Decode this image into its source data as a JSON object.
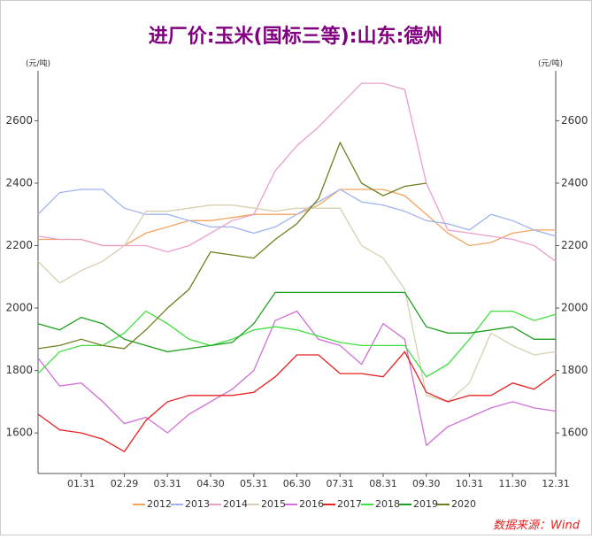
{
  "chart_data": {
    "type": "line",
    "title": "进厂价:玉米(国标三等):山东:德州",
    "y_unit": "(元/吨)",
    "y2_unit": "(元/吨)",
    "source": "数据来源：Wind",
    "categories": [
      null,
      null,
      "01.31",
      null,
      "02.29",
      null,
      "03.31",
      null,
      "04.30",
      null,
      "05.31",
      null,
      "06.30",
      null,
      "07.31",
      null,
      "08.31",
      null,
      "09.30",
      null,
      "10.31",
      null,
      "11.30",
      null,
      "12.31"
    ],
    "ylim": [
      1470,
      2760
    ],
    "yticks": [
      1600,
      1800,
      2000,
      2200,
      2400,
      2600
    ],
    "y2lim": [
      1470,
      2760
    ],
    "y2ticks": [
      1600,
      1800,
      2000,
      2200,
      2400,
      2600
    ],
    "series": [
      {
        "name": "2012",
        "color": "#f4a460",
        "values": [
          2220,
          2220,
          2220,
          2200,
          2200,
          2240,
          2260,
          2280,
          2280,
          2290,
          2300,
          2300,
          2300,
          2330,
          2380,
          2380,
          2380,
          2360,
          2300,
          2240,
          2200,
          2210,
          2240,
          2250,
          2250
        ]
      },
      {
        "name": "2013",
        "color": "#9fb4ee",
        "values": [
          2300,
          2370,
          2380,
          2380,
          2320,
          2300,
          2300,
          2280,
          2260,
          2260,
          2240,
          2260,
          2300,
          2340,
          2380,
          2340,
          2330,
          2310,
          2280,
          2270,
          2250,
          2300,
          2280,
          2250,
          2230
        ]
      },
      {
        "name": "2014",
        "color": "#eaa0cc",
        "values": [
          2230,
          2220,
          2220,
          2200,
          2200,
          2200,
          2180,
          2200,
          2240,
          2280,
          2300,
          2440,
          2520,
          2580,
          2650,
          2720,
          2720,
          2700,
          2400,
          2250,
          2240,
          2230,
          2220,
          2200,
          2150
        ]
      },
      {
        "name": "2015",
        "color": "#d8d0b0",
        "values": [
          2150,
          2080,
          2120,
          2150,
          2200,
          2310,
          2310,
          2320,
          2330,
          2330,
          2320,
          2310,
          2320,
          2320,
          2320,
          2200,
          2160,
          2060,
          1720,
          1700,
          1760,
          1920,
          1880,
          1850,
          1860
        ]
      },
      {
        "name": "2016",
        "color": "#d070d8",
        "values": [
          1840,
          1750,
          1760,
          1700,
          1630,
          1650,
          1600,
          1660,
          1700,
          1740,
          1800,
          1960,
          1990,
          1900,
          1880,
          1820,
          1950,
          1900,
          1560,
          1620,
          1650,
          1680,
          1700,
          1680,
          1670
        ]
      },
      {
        "name": "2017",
        "color": "#e82020",
        "values": [
          1660,
          1610,
          1600,
          1580,
          1540,
          1640,
          1700,
          1720,
          1720,
          1720,
          1730,
          1780,
          1850,
          1850,
          1790,
          1790,
          1780,
          1860,
          1730,
          1700,
          1720,
          1720,
          1760,
          1740,
          1790
        ]
      },
      {
        "name": "2018",
        "color": "#40e040",
        "values": [
          1790,
          1860,
          1880,
          1880,
          1920,
          1990,
          1950,
          1900,
          1880,
          1900,
          1930,
          1940,
          1930,
          1910,
          1890,
          1880,
          1880,
          1880,
          1780,
          1820,
          1900,
          1990,
          1990,
          1960,
          1980
        ]
      },
      {
        "name": "2019",
        "color": "#20a020",
        "values": [
          1950,
          1930,
          1970,
          1950,
          1900,
          1880,
          1860,
          1870,
          1880,
          1890,
          1950,
          2050,
          2050,
          2050,
          2050,
          2050,
          2050,
          2050,
          1940,
          1920,
          1920,
          1930,
          1940,
          1900,
          1900
        ]
      },
      {
        "name": "2020",
        "color": "#708020",
        "values": [
          1870,
          1880,
          1900,
          1880,
          1870,
          1930,
          2000,
          2060,
          2180,
          2170,
          2160,
          2220,
          2270,
          2350,
          2530,
          2400,
          2360,
          2390,
          2400,
          null,
          null,
          null,
          null,
          null,
          null
        ]
      }
    ]
  }
}
